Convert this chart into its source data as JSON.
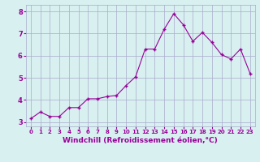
{
  "x": [
    0,
    1,
    2,
    3,
    4,
    5,
    6,
    7,
    8,
    9,
    10,
    11,
    12,
    13,
    14,
    15,
    16,
    17,
    18,
    19,
    20,
    21,
    22,
    23
  ],
  "y": [
    3.15,
    3.45,
    3.25,
    3.25,
    3.65,
    3.65,
    4.05,
    4.05,
    4.15,
    4.2,
    4.65,
    5.05,
    6.3,
    6.3,
    7.2,
    7.9,
    7.4,
    6.65,
    7.05,
    6.6,
    6.05,
    5.85,
    6.3,
    5.2
  ],
  "line_color": "#990099",
  "marker": "+",
  "marker_size": 3,
  "bg_color": "#d8f0f0",
  "grid_color": "#aaaacc",
  "tick_color": "#990099",
  "xlabel": "Windchill (Refroidissement éolien,°C)",
  "xlabel_color": "#990099",
  "ylabel_ticks": [
    3,
    4,
    5,
    6,
    7,
    8
  ],
  "xlim": [
    -0.5,
    23.5
  ],
  "ylim": [
    2.8,
    8.3
  ],
  "xtick_labels": [
    "0",
    "1",
    "2",
    "3",
    "4",
    "5",
    "6",
    "7",
    "8",
    "9",
    "10",
    "11",
    "12",
    "13",
    "14",
    "15",
    "16",
    "17",
    "18",
    "19",
    "20",
    "21",
    "22",
    "23"
  ]
}
